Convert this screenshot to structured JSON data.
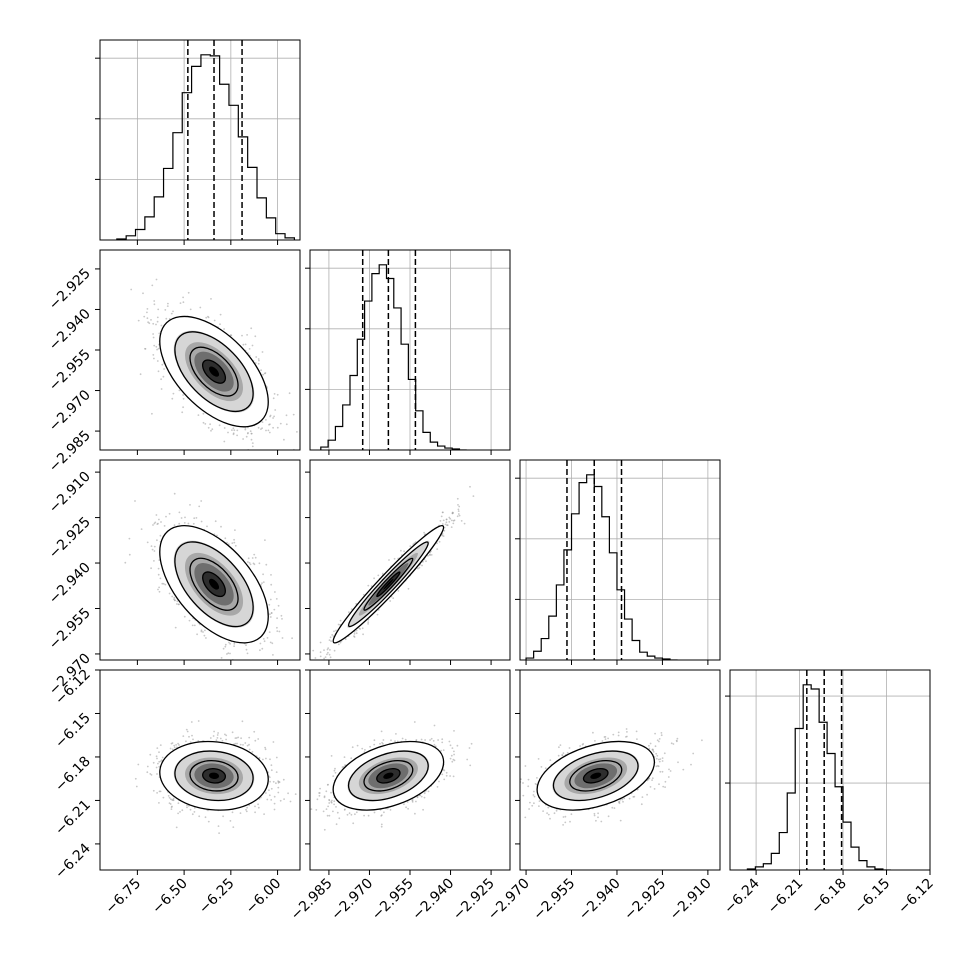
{
  "figure": {
    "type": "corner-plot",
    "background": "#ffffff",
    "colors": {
      "axes": "#000000",
      "grid": "#b0b0b0",
      "hist_line": "#000000",
      "quantile_line": "#000000",
      "scatter_point": "#9a9a9a",
      "density_low": "#ffffff",
      "density_high": "#000000",
      "contour": "#000000"
    }
  },
  "chart_data": [
    {
      "type": "histogram",
      "row": 0,
      "col": 0,
      "param": 0,
      "xlim": [
        -6.95,
        -5.88
      ],
      "xticks": [
        -6.75,
        -6.5,
        -6.25,
        -6.0
      ],
      "xtick_labels": [],
      "y_gridlines": 3,
      "grid": true,
      "bin_edges": [
        -6.86,
        -6.81,
        -6.76,
        -6.71,
        -6.66,
        -6.61,
        -6.56,
        -6.51,
        -6.46,
        -6.41,
        -6.36,
        -6.31,
        -6.26,
        -6.21,
        -6.16,
        -6.11,
        -6.06,
        -6.01,
        -5.96,
        -5.91
      ],
      "counts": [
        1,
        4,
        10,
        22,
        41,
        68,
        102,
        140,
        165,
        176,
        175,
        148,
        128,
        98,
        69,
        40,
        21,
        6,
        2
      ],
      "quantiles": [
        -6.48,
        -6.34,
        -6.19
      ]
    },
    {
      "type": "hist2d",
      "row": 1,
      "col": 0,
      "params": [
        0,
        1
      ],
      "xlim": [
        -6.95,
        -5.88
      ],
      "ylim": [
        -2.992,
        -2.918
      ],
      "xticks": [
        -6.75,
        -6.5,
        -6.25,
        -6.0
      ],
      "xtick_labels": [],
      "yticks": [
        -2.925,
        -2.94,
        -2.955,
        -2.97,
        -2.985
      ],
      "ytick_labels": [
        "−2.925",
        "−2.940",
        "−2.955",
        "−2.970",
        "−2.985"
      ],
      "center": [
        -6.34,
        -2.963
      ],
      "sd": [
        0.135,
        0.0095
      ],
      "rho": -0.55,
      "npoints": 1600
    },
    {
      "type": "histogram",
      "row": 1,
      "col": 1,
      "param": 1,
      "xlim": [
        -2.992,
        -2.918
      ],
      "xticks": [
        -2.985,
        -2.97,
        -2.955,
        -2.94,
        -2.925
      ],
      "xtick_labels": [],
      "y_gridlines": 3,
      "grid": true,
      "bin_edges": [
        -2.988,
        -2.9853,
        -2.9826,
        -2.9799,
        -2.9772,
        -2.9745,
        -2.9718,
        -2.9691,
        -2.9664,
        -2.9637,
        -2.961,
        -2.9583,
        -2.9556,
        -2.9529,
        -2.9502,
        -2.9475,
        -2.9448,
        -2.9421,
        -2.9394,
        -2.9367,
        -2.934
      ],
      "counts": [
        3,
        10,
        24,
        46,
        76,
        113,
        152,
        180,
        189,
        175,
        145,
        108,
        72,
        40,
        18,
        8,
        4,
        2,
        1,
        0
      ],
      "quantiles": [
        -2.9725,
        -2.963,
        -2.953
      ]
    },
    {
      "type": "hist2d",
      "row": 2,
      "col": 0,
      "params": [
        0,
        2
      ],
      "xlim": [
        -6.95,
        -5.88
      ],
      "ylim": [
        -2.972,
        -2.906
      ],
      "xticks": [
        -6.75,
        -6.5,
        -6.25,
        -6.0
      ],
      "xtick_labels": [],
      "yticks": [
        -2.91,
        -2.925,
        -2.94,
        -2.955,
        -2.97
      ],
      "ytick_labels": [
        "−2.910",
        "−2.925",
        "−2.940",
        "−2.955",
        "−2.970"
      ],
      "center": [
        -6.34,
        -2.947
      ],
      "sd": [
        0.135,
        0.009
      ],
      "rho": -0.55,
      "npoints": 1600
    },
    {
      "type": "hist2d",
      "row": 2,
      "col": 1,
      "params": [
        1,
        2
      ],
      "xlim": [
        -2.992,
        -2.918
      ],
      "ylim": [
        -2.972,
        -2.906
      ],
      "xticks": [
        -2.985,
        -2.97,
        -2.955,
        -2.94,
        -2.925
      ],
      "xtick_labels": [],
      "yticks": [
        -2.91,
        -2.925,
        -2.94,
        -2.955,
        -2.97
      ],
      "ytick_labels": [],
      "center": [
        -2.963,
        -2.947
      ],
      "sd": [
        0.0095,
        0.009
      ],
      "rho": 0.97,
      "npoints": 1600
    },
    {
      "type": "histogram",
      "row": 2,
      "col": 2,
      "param": 2,
      "xlim": [
        -2.972,
        -2.906
      ],
      "xticks": [
        -2.97,
        -2.955,
        -2.94,
        -2.925,
        -2.91
      ],
      "xtick_labels": [],
      "y_gridlines": 3,
      "grid": true,
      "bin_edges": [
        -2.97,
        -2.9675,
        -2.965,
        -2.9625,
        -2.96,
        -2.9575,
        -2.955,
        -2.9525,
        -2.95,
        -2.9475,
        -2.945,
        -2.9425,
        -2.94,
        -2.9375,
        -2.935,
        -2.9325,
        -2.93,
        -2.9275,
        -2.925,
        -2.9225,
        -2.92
      ],
      "counts": [
        2,
        9,
        22,
        45,
        77,
        113,
        150,
        182,
        190,
        178,
        147,
        110,
        72,
        42,
        20,
        8,
        4,
        2,
        1,
        0
      ],
      "quantiles": [
        -2.9565,
        -2.9475,
        -2.9385
      ]
    },
    {
      "type": "hist2d",
      "row": 3,
      "col": 0,
      "params": [
        0,
        3
      ],
      "xlim": [
        -6.95,
        -5.88
      ],
      "ylim": [
        -6.258,
        -6.12
      ],
      "xticks": [
        -6.75,
        -6.5,
        -6.25,
        -6.0
      ],
      "xtick_labels": [
        "−6.75",
        "−6.50",
        "−6.25",
        "−6.00"
      ],
      "yticks": [
        -6.12,
        -6.15,
        -6.18,
        -6.21,
        -6.24
      ],
      "ytick_labels": [
        "−6.12",
        "−6.15",
        "−6.18",
        "−6.21",
        "−6.24"
      ],
      "center": [
        -6.34,
        -6.193
      ],
      "sd": [
        0.135,
        0.011
      ],
      "rho": -0.1,
      "npoints": 1600
    },
    {
      "type": "hist2d",
      "row": 3,
      "col": 1,
      "params": [
        1,
        3
      ],
      "xlim": [
        -2.992,
        -2.918
      ],
      "ylim": [
        -6.258,
        -6.12
      ],
      "xticks": [
        -2.985,
        -2.97,
        -2.955,
        -2.94,
        -2.925
      ],
      "xtick_labels": [
        "−2.985",
        "−2.970",
        "−2.955",
        "−2.940",
        "−2.925"
      ],
      "yticks": [
        -6.12,
        -6.15,
        -6.18,
        -6.21,
        -6.24
      ],
      "ytick_labels": [],
      "center": [
        -2.963,
        -6.193
      ],
      "sd": [
        0.0095,
        0.011
      ],
      "rho": 0.4,
      "npoints": 1600
    },
    {
      "type": "hist2d",
      "row": 3,
      "col": 2,
      "params": [
        2,
        3
      ],
      "xlim": [
        -2.972,
        -2.906
      ],
      "ylim": [
        -6.258,
        -6.12
      ],
      "xticks": [
        -2.97,
        -2.955,
        -2.94,
        -2.925,
        -2.91
      ],
      "xtick_labels": [
        "−2.970",
        "−2.955",
        "−2.940",
        "−2.925",
        "−2.910"
      ],
      "yticks": [
        -6.12,
        -6.15,
        -6.18,
        -6.21,
        -6.24
      ],
      "ytick_labels": [],
      "center": [
        -2.947,
        -6.193
      ],
      "sd": [
        0.009,
        0.011
      ],
      "rho": 0.4,
      "npoints": 1600
    },
    {
      "type": "histogram",
      "row": 3,
      "col": 3,
      "param": 3,
      "xlim": [
        -6.258,
        -6.12
      ],
      "xticks": [
        -6.24,
        -6.21,
        -6.18,
        -6.15,
        -6.12
      ],
      "xtick_labels": [
        "−6.24",
        "−6.21",
        "−6.18",
        "−6.15",
        "−6.12"
      ],
      "y_gridlines": 2,
      "grid": true,
      "bin_edges": [
        -6.246,
        -6.2405,
        -6.235,
        -6.2295,
        -6.224,
        -6.2185,
        -6.213,
        -6.2075,
        -6.202,
        -6.1965,
        -6.191,
        -6.1855,
        -6.18,
        -6.1745,
        -6.169,
        -6.1635,
        -6.158,
        -6.1525,
        -6.147
      ],
      "counts": [
        1,
        3,
        6,
        16,
        36,
        74,
        136,
        178,
        174,
        142,
        112,
        80,
        46,
        22,
        9,
        3,
        1,
        0
      ],
      "quantiles": [
        -6.205,
        -6.193,
        -6.181
      ]
    }
  ]
}
